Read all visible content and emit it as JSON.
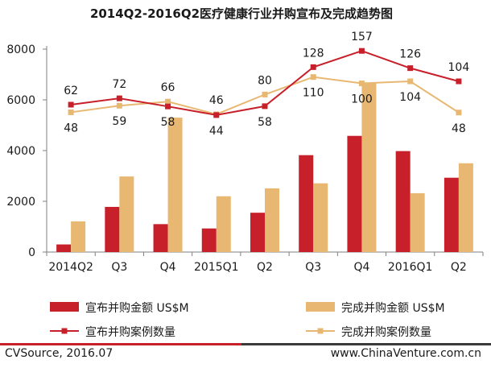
{
  "colors": {
    "announced": "#c8202a",
    "completed": "#e8b872",
    "axis": "#7f7f7f"
  },
  "chart_data": {
    "type": "bar",
    "title": "2014Q2-2016Q2医疗健康行业并购宣布及完成趋势图",
    "categories": [
      "2014Q2",
      "Q3",
      "Q4",
      "2015Q1",
      "Q2",
      "Q3",
      "Q4",
      "2016Q1",
      "Q2"
    ],
    "ylim": [
      0,
      8000
    ],
    "yticks": [
      0,
      2000,
      4000,
      6000,
      8000
    ],
    "grid": false,
    "legend_position": "bottom",
    "series": [
      {
        "name": "宣布并购金额 US$M",
        "type": "bar",
        "values": [
          300,
          1780,
          1100,
          930,
          1550,
          3820,
          4580,
          3980,
          2930
        ]
      },
      {
        "name": "完成并购金额 US$M",
        "type": "bar",
        "values": [
          1210,
          2980,
          5300,
          2200,
          2510,
          2710,
          6650,
          2320,
          3500
        ]
      },
      {
        "name": "宣布并购案例数量",
        "type": "line",
        "axis": "secondary",
        "values": [
          62,
          72,
          58,
          44,
          58,
          128,
          157,
          126,
          104
        ]
      },
      {
        "name": "完成并购案例数量",
        "type": "line",
        "axis": "secondary",
        "values": [
          48,
          59,
          66,
          46,
          80,
          110,
          100,
          104,
          48
        ]
      }
    ],
    "line_positions": {
      "announced": [
        5810,
        6060,
        5740,
        5400,
        5750,
        7290,
        7930,
        7250,
        6730
      ],
      "completed": [
        5510,
        5770,
        5930,
        5430,
        6210,
        6900,
        6650,
        6730,
        5500
      ]
    }
  },
  "footer": {
    "source": "CVSource, 2016.07",
    "site": "www.ChinaVenture.com.cn"
  }
}
